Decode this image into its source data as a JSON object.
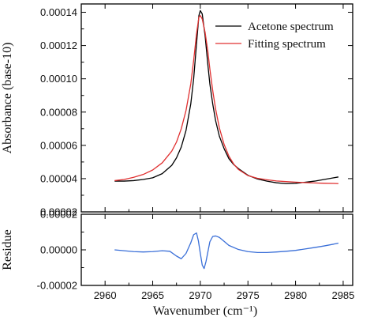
{
  "chart_data": [
    {
      "type": "line",
      "panel": "top",
      "ylabel": "Absorbance (base-10)",
      "xlim": [
        2957.5,
        2986
      ],
      "ylim": [
        2e-05,
        0.000145
      ],
      "yticks": [
        2e-05,
        4e-05,
        6e-05,
        8e-05,
        0.0001,
        0.00012,
        0.00014
      ],
      "ytick_labels": [
        "0.00002",
        "0.00004",
        "0.00006",
        "0.00008",
        "0.00010",
        "0.00012",
        "0.00014"
      ],
      "legend_position": "top-right",
      "grid": false,
      "series": [
        {
          "name": "Acetone spectrum",
          "color": "#000000",
          "x": [
            2961,
            2962,
            2963,
            2964,
            2965,
            2966,
            2967,
            2967.5,
            2968,
            2968.5,
            2969,
            2969.3,
            2969.6,
            2969.85,
            2970,
            2970.2,
            2970.5,
            2970.8,
            2971,
            2971.3,
            2971.6,
            2972,
            2972.5,
            2973,
            2973.5,
            2974,
            2975,
            2976,
            2977,
            2978,
            2979,
            2980,
            2981,
            2982,
            2983,
            2984,
            2984.5
          ],
          "values": [
            3.85e-05,
            3.85e-05,
            3.88e-05,
            3.95e-05,
            4.05e-05,
            4.3e-05,
            4.8e-05,
            5.25e-05,
            5.9e-05,
            6.9e-05,
            8.5e-05,
            0.0001,
            0.000121,
            0.000138,
            0.000141,
            0.000139,
            0.000126,
            0.000108,
            9.7e-05,
            8.5e-05,
            7.5e-05,
            6.55e-05,
            5.8e-05,
            5.2e-05,
            4.85e-05,
            4.6e-05,
            4.2e-05,
            3.98e-05,
            3.85e-05,
            3.75e-05,
            3.7e-05,
            3.72e-05,
            3.78e-05,
            3.85e-05,
            3.95e-05,
            4.05e-05,
            4.1e-05
          ]
        },
        {
          "name": "Fitting spectrum",
          "color": "#e03030",
          "x": [
            2961,
            2962,
            2963,
            2964,
            2965,
            2966,
            2967,
            2967.5,
            2968,
            2968.5,
            2969,
            2969.3,
            2969.6,
            2969.85,
            2970,
            2970.2,
            2970.5,
            2970.8,
            2971,
            2971.3,
            2971.6,
            2972,
            2972.5,
            2973,
            2973.5,
            2974,
            2975,
            2976,
            2977,
            2978,
            2979,
            2980,
            2981,
            2982,
            2983,
            2984,
            2984.5
          ],
          "values": [
            3.88e-05,
            3.95e-05,
            4.08e-05,
            4.25e-05,
            4.52e-05,
            4.95e-05,
            5.65e-05,
            6.2e-05,
            7e-05,
            8.1e-05,
            9.7e-05,
            0.000111,
            0.000127,
            0.000137,
            0.000138,
            0.000136,
            0.000128,
            0.000116,
            0.000106,
            9.3e-05,
            8.2e-05,
            7.05e-05,
            6.05e-05,
            5.35e-05,
            4.88e-05,
            4.55e-05,
            4.18e-05,
            4.02e-05,
            3.93e-05,
            3.86e-05,
            3.82e-05,
            3.79e-05,
            3.76e-05,
            3.74e-05,
            3.72e-05,
            3.71e-05,
            3.7e-05
          ]
        }
      ]
    },
    {
      "type": "line",
      "panel": "bottom",
      "xlabel": "Wavenumber (cm⁻¹)",
      "ylabel": "Residue",
      "xlim": [
        2957.5,
        2986
      ],
      "ylim": [
        -2e-05,
        2e-05
      ],
      "xticks": [
        2960,
        2965,
        2970,
        2975,
        2980,
        2985
      ],
      "xtick_labels": [
        "2960",
        "2965",
        "2970",
        "2975",
        "2980",
        "2985"
      ],
      "yticks": [
        -2e-05,
        0,
        2e-05
      ],
      "ytick_labels": [
        "-0.00002",
        "0.00000",
        "0.00002"
      ],
      "grid": false,
      "series": [
        {
          "color": "#3a6fd8",
          "x": [
            2961,
            2962,
            2963,
            2964,
            2965,
            2966,
            2966.8,
            2967.5,
            2968,
            2968.5,
            2969,
            2969.3,
            2969.6,
            2969.8,
            2970,
            2970.2,
            2970.4,
            2970.6,
            2970.8,
            2971,
            2971.3,
            2971.6,
            2972,
            2972.5,
            2973,
            2974,
            2975,
            2976,
            2977,
            2978,
            2979,
            2980,
            2981,
            2982,
            2983,
            2984,
            2984.5
          ],
          "values": [
            0,
            -5e-07,
            -1e-06,
            -1.2e-06,
            -1e-06,
            -5e-07,
            -8e-07,
            -3.5e-06,
            -5e-06,
            -2e-06,
            4e-06,
            8.5e-06,
            9.5e-06,
            5e-06,
            -2e-06,
            -8.5e-06,
            -1.05e-05,
            -6.5e-06,
            -1e-06,
            4.5e-06,
            7.5e-06,
            7.8e-06,
            7e-06,
            4.8e-06,
            2.5e-06,
            2e-07,
            -1e-06,
            -1.5e-06,
            -1.5e-06,
            -1.2e-06,
            -8e-07,
            -3e-07,
            5e-07,
            1.3e-06,
            2.2e-06,
            3.2e-06,
            3.8e-06
          ]
        }
      ]
    }
  ]
}
